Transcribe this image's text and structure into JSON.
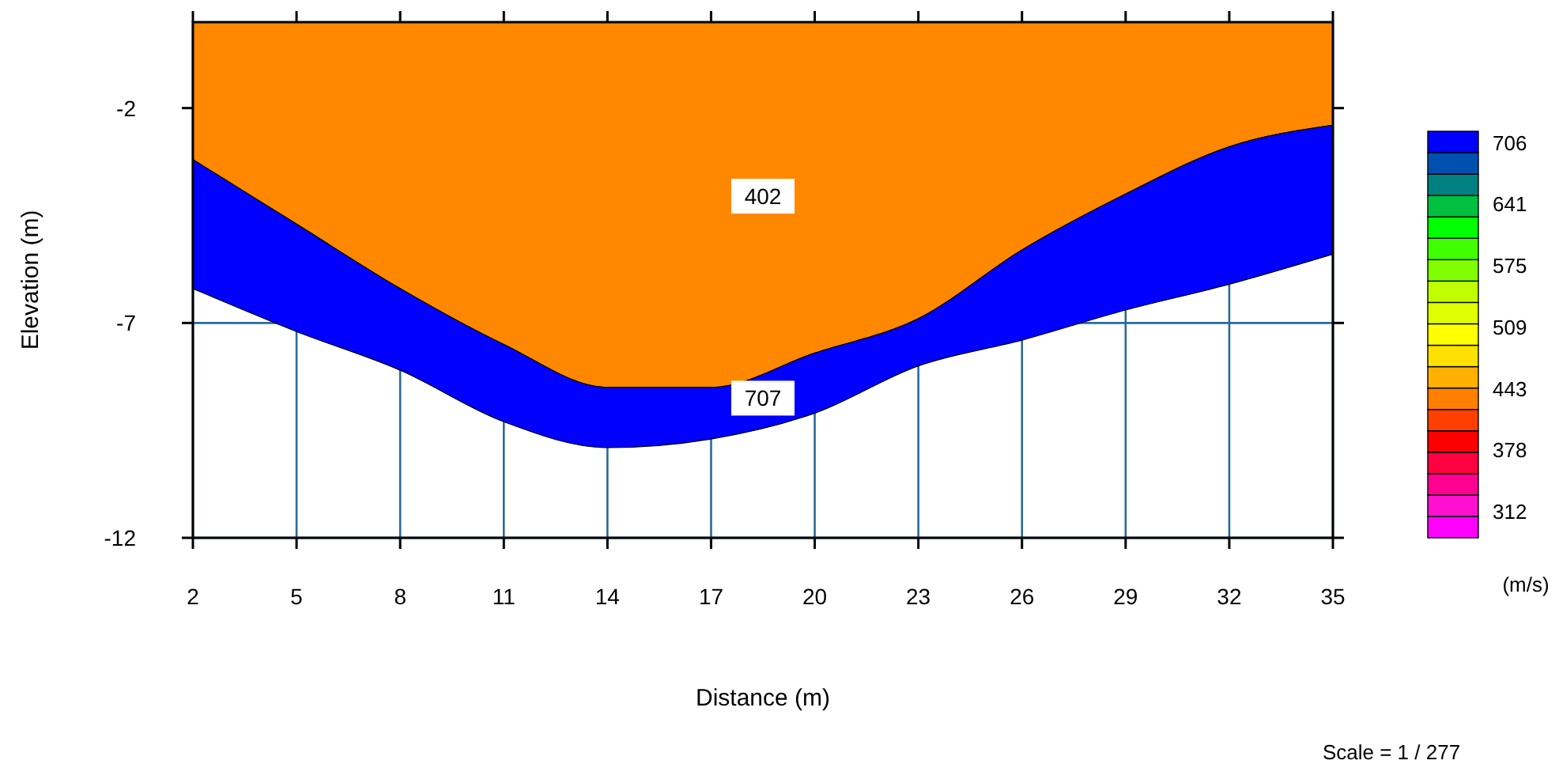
{
  "chart_data": {
    "type": "area",
    "xlabel": "Distance (m)",
    "ylabel": "Elevation (m)",
    "clabel": "(m/s)",
    "x": [
      2,
      5,
      8,
      11,
      14,
      17,
      20,
      23,
      26,
      29,
      32,
      35
    ],
    "series": [
      {
        "name": "402",
        "color": "#ff8800",
        "values": [
          -3.2,
          -4.7,
          -6.2,
          -7.5,
          -8.5,
          -8.5,
          -7.7,
          -6.9,
          -5.3,
          -4.0,
          -2.9,
          -2.4
        ]
      },
      {
        "name": "707",
        "color": "#0000ff",
        "values": [
          -6.2,
          -7.2,
          -8.1,
          -9.3,
          -9.9,
          -9.7,
          -9.1,
          -8.0,
          -7.4,
          -6.7,
          -6.1,
          -5.4
        ]
      }
    ],
    "xlim": [
      2,
      35
    ],
    "xticks": [
      2,
      5,
      8,
      11,
      14,
      17,
      20,
      23,
      26,
      29,
      32,
      35
    ],
    "ylim": [
      -12,
      0
    ],
    "yticks": [
      -2,
      -7,
      -12
    ],
    "grid": true,
    "clim": [
      283,
      718
    ],
    "cticks": [
      312,
      378,
      443,
      509,
      575,
      641,
      706
    ],
    "colors": [
      "#ff00ff",
      "#ff10d0",
      "#ff0090",
      "#ff0040",
      "#ff0000",
      "#ff4000",
      "#ff8000",
      "#ffb000",
      "#ffe000",
      "#ffff00",
      "#e0ff00",
      "#c0ff00",
      "#80ff00",
      "#40ff00",
      "#00ff00",
      "#00c040",
      "#008080",
      "#0050b0",
      "#0000ff"
    ],
    "annotations": [
      "Scale = 1 / 277"
    ]
  }
}
